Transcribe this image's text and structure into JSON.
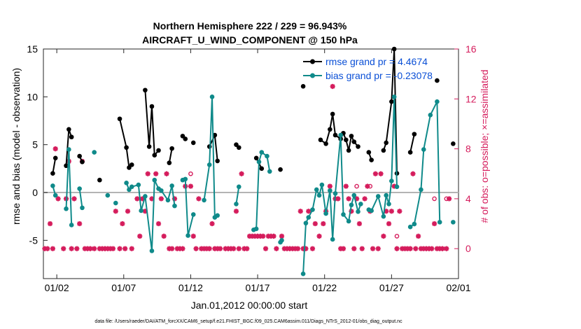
{
  "chart_data": {
    "type": "line",
    "title_line1": "Northern Hemisphere 222 / 229 = 96.943%",
    "title_line2": "AIRCRAFT_U_WIND_COMPONENT @ 150 hPa",
    "xlabel": "Jan.01,2012 00:00:00 start",
    "ylabel_left": "rmse and bias (model - observation)",
    "ylabel_right": "# of obs: o=possible; ×=assimilated",
    "footer": "data file: /Users/raeder/DAI/ATM_forcXX/CAM6_setup/f.e21.FHIST_BGC.f09_025.CAM6assim.011/Diags_NTrS_2012-01/obs_diag_output.nc",
    "xlim": [
      0.5,
      31.5
    ],
    "ylim_left": [
      -9,
      15
    ],
    "ylim_right": [
      -2.4,
      16
    ],
    "x_ticks": [
      1.5,
      6.5,
      11.5,
      16.5,
      21.5,
      26.5,
      31.5
    ],
    "x_tick_labels": [
      "01/02",
      "01/07",
      "01/12",
      "01/17",
      "01/22",
      "01/27",
      "02/01"
    ],
    "y_ticks_left": [
      -5,
      0,
      5,
      10,
      15
    ],
    "y_ticks_right": [
      0,
      4,
      8,
      12,
      16
    ],
    "colors": {
      "rmse": "#000000",
      "bias": "#0f8a8a",
      "obs": "#d51c5c",
      "legend_text": "#0a4fd6",
      "zero_line": "#b4b4b4"
    },
    "series": [
      {
        "name": "rmse grand pr = 4.4674",
        "values": [
          [
            1.2,
            2.0
          ],
          [
            1.4,
            3.6
          ],
          [
            2.2,
            2.8
          ],
          [
            2.4,
            6.6
          ],
          [
            2.6,
            5.8
          ],
          [
            3.2,
            3.8
          ],
          [
            3.4,
            3.2
          ],
          [
            4.7,
            1.3
          ],
          [
            6.2,
            7.7
          ],
          [
            6.7,
            4.7
          ],
          [
            6.9,
            2.6
          ],
          [
            7.1,
            2.9
          ],
          [
            8.1,
            10.7
          ],
          [
            8.4,
            4.8
          ],
          [
            8.6,
            9.0
          ],
          [
            8.8,
            3.9
          ],
          [
            9.1,
            4.4
          ],
          [
            9.9,
            3.1
          ],
          [
            10.1,
            4.6
          ],
          [
            10.9,
            5.9
          ],
          [
            11.1,
            5.6
          ],
          [
            11.7,
            5.2
          ],
          [
            12.9,
            4.8
          ],
          [
            13.3,
            6.0
          ],
          [
            13.5,
            3.3
          ],
          [
            14.9,
            5.0
          ],
          [
            15.1,
            4.7
          ],
          [
            16.4,
            3.6
          ],
          [
            16.8,
            2.5
          ],
          [
            18.2,
            2.4
          ],
          [
            19.9,
            11.1
          ],
          [
            21.2,
            5.5
          ],
          [
            21.6,
            5.1
          ],
          [
            21.9,
            6.6
          ],
          [
            22.1,
            8.2
          ],
          [
            22.3,
            6.0
          ],
          [
            22.7,
            5.6
          ],
          [
            22.9,
            6.2
          ],
          [
            23.1,
            5.5
          ],
          [
            23.3,
            4.4
          ],
          [
            23.5,
            5.9
          ],
          [
            23.7,
            5.3
          ],
          [
            24.0,
            4.8
          ],
          [
            24.8,
            4.2
          ],
          [
            25.0,
            3.4
          ],
          [
            25.9,
            4.4
          ],
          [
            26.1,
            5.2
          ],
          [
            26.5,
            9.5
          ],
          [
            26.7,
            15.0
          ],
          [
            26.9,
            2.0
          ],
          [
            27.9,
            4.2
          ],
          [
            28.2,
            6.1
          ],
          [
            29.9,
            11.7
          ],
          [
            31.1,
            5.1
          ]
        ]
      },
      {
        "name": "bias grand pr = -0.23078",
        "values": [
          [
            1.2,
            0.7
          ],
          [
            1.4,
            -0.3
          ],
          [
            2.2,
            -1.7
          ],
          [
            2.4,
            4.5
          ],
          [
            2.6,
            -3.4
          ],
          [
            3.2,
            0.4
          ],
          [
            3.4,
            -1.6
          ],
          [
            4.3,
            4.2
          ],
          [
            5.3,
            -0.3
          ],
          [
            5.9,
            -1.1
          ],
          [
            6.7,
            1.0
          ],
          [
            6.9,
            0.3
          ],
          [
            7.1,
            0.6
          ],
          [
            7.6,
            0.8
          ],
          [
            7.8,
            -1.9
          ],
          [
            8.1,
            -0.4
          ],
          [
            8.6,
            -6.1
          ],
          [
            8.8,
            1.3
          ],
          [
            9.1,
            0.4
          ],
          [
            9.3,
            0.2
          ],
          [
            9.8,
            -0.8
          ],
          [
            10.1,
            0.7
          ],
          [
            10.3,
            -1.4
          ],
          [
            10.9,
            1.3
          ],
          [
            11.1,
            1.4
          ],
          [
            11.3,
            -4.5
          ],
          [
            11.7,
            -2.3
          ],
          [
            12.5,
            -0.8
          ],
          [
            12.9,
            2.9
          ],
          [
            13.1,
            10.0
          ],
          [
            13.3,
            -2.6
          ],
          [
            13.5,
            -2.4
          ],
          [
            14.9,
            -1.2
          ],
          [
            15.1,
            0.6
          ],
          [
            16.2,
            -3.9
          ],
          [
            16.4,
            -3.8
          ],
          [
            16.6,
            3.2
          ],
          [
            16.8,
            4.2
          ],
          [
            17.2,
            3.8
          ],
          [
            17.4,
            2.2
          ],
          [
            18.2,
            -5.2
          ],
          [
            18.3,
            -5.0
          ],
          [
            19.9,
            -8.5
          ],
          [
            20.1,
            -3.2
          ],
          [
            20.3,
            -2.6
          ],
          [
            20.6,
            -1.8
          ],
          [
            20.9,
            0.3
          ],
          [
            21.1,
            -0.3
          ],
          [
            21.3,
            0.8
          ],
          [
            21.6,
            -2.2
          ],
          [
            21.9,
            0.2
          ],
          [
            22.1,
            -4.9
          ],
          [
            22.3,
            -0.1
          ],
          [
            22.7,
            6.0
          ],
          [
            22.9,
            -2.3
          ],
          [
            23.3,
            -3.0
          ],
          [
            23.5,
            -1.3
          ],
          [
            23.7,
            -0.3
          ],
          [
            24.0,
            -2.0
          ],
          [
            24.2,
            -1.2
          ],
          [
            24.8,
            -1.8
          ],
          [
            25.0,
            -1.9
          ],
          [
            25.5,
            -0.4
          ],
          [
            25.9,
            -2.5
          ],
          [
            26.1,
            -0.3
          ],
          [
            26.3,
            -1.2
          ],
          [
            26.5,
            1.2
          ],
          [
            26.7,
            10.0
          ],
          [
            26.9,
            0.6
          ],
          [
            27.9,
            -3.6
          ],
          [
            28.2,
            -3.3
          ],
          [
            28.7,
            0.3
          ],
          [
            28.9,
            4.5
          ],
          [
            29.4,
            8.1
          ],
          [
            29.9,
            9.5
          ],
          [
            30.1,
            -3.1
          ],
          [
            31.1,
            -3.1
          ]
        ]
      }
    ],
    "obs_assimilated": [
      [
        0.6,
        0
      ],
      [
        0.8,
        0
      ],
      [
        1.0,
        2
      ],
      [
        1.2,
        0
      ],
      [
        1.4,
        8
      ],
      [
        1.6,
        4
      ],
      [
        2.0,
        0
      ],
      [
        2.2,
        4
      ],
      [
        2.4,
        7
      ],
      [
        2.6,
        0
      ],
      [
        2.8,
        4
      ],
      [
        3.0,
        0
      ],
      [
        3.2,
        2
      ],
      [
        3.4,
        7
      ],
      [
        3.6,
        0
      ],
      [
        3.8,
        0
      ],
      [
        4.0,
        0
      ],
      [
        4.3,
        0
      ],
      [
        4.7,
        0
      ],
      [
        4.9,
        0
      ],
      [
        5.1,
        0
      ],
      [
        5.3,
        0
      ],
      [
        5.5,
        0
      ],
      [
        5.7,
        0
      ],
      [
        5.9,
        3
      ],
      [
        6.2,
        0
      ],
      [
        6.4,
        2
      ],
      [
        6.6,
        0
      ],
      [
        6.8,
        3
      ],
      [
        7.1,
        0
      ],
      [
        7.5,
        4
      ],
      [
        7.7,
        1
      ],
      [
        7.9,
        4
      ],
      [
        8.1,
        3
      ],
      [
        8.3,
        6
      ],
      [
        8.6,
        4
      ],
      [
        8.9,
        6
      ],
      [
        9.1,
        2
      ],
      [
        9.3,
        4
      ],
      [
        9.5,
        1
      ],
      [
        9.7,
        6
      ],
      [
        9.9,
        0
      ],
      [
        10.1,
        0
      ],
      [
        10.3,
        4
      ],
      [
        10.5,
        0
      ],
      [
        10.7,
        0
      ],
      [
        10.9,
        0
      ],
      [
        11.1,
        5
      ],
      [
        11.5,
        5
      ],
      [
        11.7,
        1
      ],
      [
        11.9,
        0
      ],
      [
        12.1,
        4
      ],
      [
        12.3,
        0
      ],
      [
        12.5,
        0
      ],
      [
        12.7,
        0
      ],
      [
        12.9,
        0
      ],
      [
        13.1,
        2
      ],
      [
        13.3,
        0
      ],
      [
        13.5,
        0
      ],
      [
        13.7,
        0
      ],
      [
        14.1,
        0
      ],
      [
        14.3,
        0
      ],
      [
        14.5,
        0
      ],
      [
        14.7,
        0
      ],
      [
        14.9,
        3
      ],
      [
        15.1,
        0
      ],
      [
        15.3,
        6
      ],
      [
        15.5,
        0
      ],
      [
        15.7,
        0
      ],
      [
        15.9,
        1
      ],
      [
        16.1,
        1
      ],
      [
        16.3,
        1
      ],
      [
        16.5,
        1
      ],
      [
        16.7,
        1
      ],
      [
        16.9,
        1
      ],
      [
        17.1,
        0
      ],
      [
        17.3,
        1
      ],
      [
        17.5,
        1
      ],
      [
        17.7,
        1
      ],
      [
        17.9,
        0
      ],
      [
        18.3,
        1
      ],
      [
        18.5,
        0
      ],
      [
        18.7,
        0
      ],
      [
        18.9,
        0
      ],
      [
        19.1,
        0
      ],
      [
        19.3,
        0
      ],
      [
        19.5,
        0
      ],
      [
        19.7,
        3
      ],
      [
        19.9,
        0
      ],
      [
        20.1,
        0
      ],
      [
        20.3,
        3
      ],
      [
        20.6,
        0
      ],
      [
        20.8,
        2
      ],
      [
        21.1,
        1
      ],
      [
        21.4,
        2
      ],
      [
        21.6,
        3
      ],
      [
        21.9,
        5
      ],
      [
        22.1,
        13
      ],
      [
        22.3,
        4
      ],
      [
        22.5,
        4
      ],
      [
        22.7,
        0
      ],
      [
        22.9,
        0
      ],
      [
        23.1,
        5
      ],
      [
        23.3,
        4
      ],
      [
        23.5,
        3
      ],
      [
        23.7,
        0
      ],
      [
        23.9,
        4
      ],
      [
        24.1,
        2
      ],
      [
        24.3,
        0
      ],
      [
        24.5,
        4
      ],
      [
        24.7,
        5
      ],
      [
        24.9,
        3
      ],
      [
        25.1,
        0
      ],
      [
        25.3,
        6
      ],
      [
        25.5,
        0
      ],
      [
        25.7,
        6
      ],
      [
        25.9,
        1
      ],
      [
        26.1,
        3
      ],
      [
        26.3,
        2
      ],
      [
        26.5,
        3
      ],
      [
        26.7,
        5
      ],
      [
        26.9,
        0
      ],
      [
        27.1,
        3
      ],
      [
        27.3,
        0
      ],
      [
        27.5,
        0
      ],
      [
        27.7,
        0
      ],
      [
        27.9,
        0
      ],
      [
        28.1,
        6
      ],
      [
        28.3,
        0
      ],
      [
        28.5,
        1
      ],
      [
        28.7,
        0
      ],
      [
        28.9,
        0
      ],
      [
        29.1,
        0
      ],
      [
        29.3,
        0
      ],
      [
        29.5,
        0
      ],
      [
        29.7,
        2
      ],
      [
        29.9,
        0
      ],
      [
        30.1,
        0
      ],
      [
        30.3,
        0
      ],
      [
        30.6,
        0
      ],
      [
        30.8,
        4
      ]
    ],
    "obs_possible": [
      [
        11.5,
        6
      ],
      [
        23.9,
        5
      ],
      [
        24.9,
        5
      ],
      [
        26.9,
        1
      ],
      [
        29.7,
        4
      ],
      [
        30.6,
        4
      ]
    ]
  }
}
